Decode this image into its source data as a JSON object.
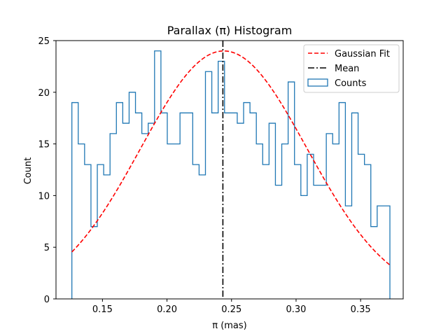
{
  "chart_data": {
    "type": "histogram",
    "title": "Parallax (π) Histogram",
    "xlabel": "π (mas)",
    "ylabel": "Count",
    "xlim": [
      0.114,
      0.383
    ],
    "ylim": [
      0,
      25
    ],
    "xticks": [
      0.15,
      0.2,
      0.25,
      0.3,
      0.35
    ],
    "xtick_labels": [
      "0.15",
      "0.20",
      "0.25",
      "0.30",
      "0.35"
    ],
    "yticks": [
      0,
      5,
      10,
      15,
      20,
      25
    ],
    "ytick_labels": [
      "0",
      "5",
      "10",
      "15",
      "20",
      "25"
    ],
    "grid": false,
    "legend_position": "top-right",
    "bins": {
      "start": 0.1263,
      "end": 0.3727,
      "counts": [
        19,
        15,
        13,
        7,
        13,
        12,
        16,
        19,
        17,
        20,
        18,
        16,
        17,
        24,
        18,
        15,
        15,
        18,
        18,
        13,
        12,
        22,
        18,
        23,
        18,
        18,
        17,
        19,
        18,
        15,
        13,
        17,
        11,
        15,
        21,
        13,
        10,
        14,
        11,
        11,
        16,
        15,
        19,
        9,
        18,
        14,
        13,
        7,
        9,
        9
      ]
    },
    "series": [
      {
        "name": "Counts",
        "kind": "step",
        "color": "#1f77b4"
      },
      {
        "name": "Gaussian Fit",
        "kind": "line",
        "style": "dashed",
        "color": "#ff0000",
        "amplitude": 24.0,
        "mu": 0.244,
        "sigma": 0.0645
      },
      {
        "name": "Mean",
        "kind": "vline",
        "style": "dashdot",
        "color": "#000000",
        "x": 0.2433
      }
    ],
    "legend": [
      "Gaussian Fit",
      "Mean",
      "Counts"
    ]
  }
}
